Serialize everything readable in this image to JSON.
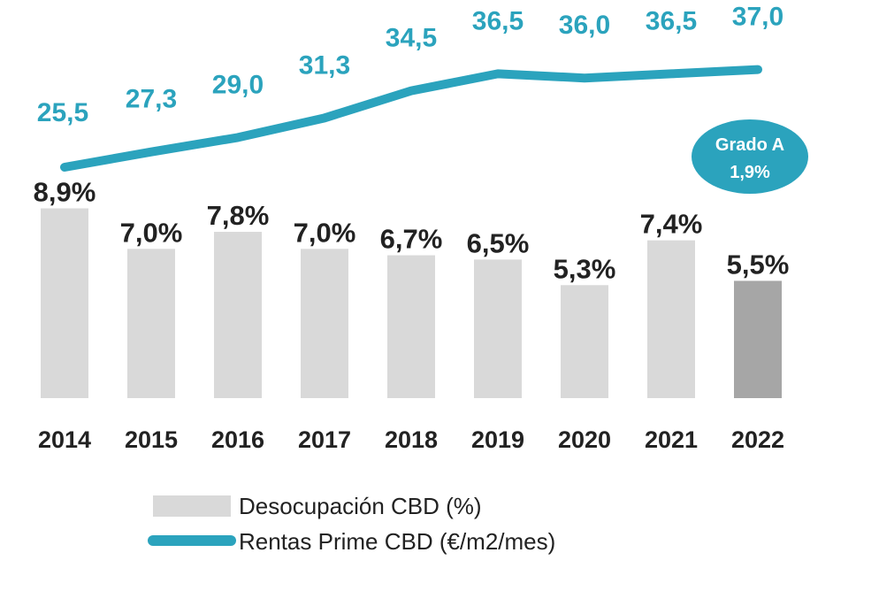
{
  "chart_data": {
    "type": "bar",
    "categories": [
      "2014",
      "2015",
      "2016",
      "2017",
      "2018",
      "2019",
      "2020",
      "2021",
      "2022"
    ],
    "series": [
      {
        "name": "Desocupación CBD (%)",
        "type": "bar",
        "values": [
          8.9,
          7.0,
          7.8,
          7.0,
          6.7,
          6.5,
          5.3,
          7.4,
          5.5
        ],
        "labels": [
          "8,9%",
          "7,0%",
          "7,8%",
          "7,0%",
          "6,7%",
          "6,5%",
          "5,3%",
          "7,4%",
          "5,5%"
        ]
      },
      {
        "name": "Rentas Prime CBD (€/m2/mes)",
        "type": "line",
        "values": [
          25.5,
          27.3,
          29.0,
          31.3,
          34.5,
          36.5,
          36.0,
          36.5,
          37.0
        ],
        "labels": [
          "25,5",
          "27,3",
          "29,0",
          "31,3",
          "34,5",
          "36,5",
          "36,0",
          "36,5",
          "37,0"
        ]
      }
    ],
    "annotation": {
      "line1": "Grado A",
      "line2": "1,9%"
    },
    "legend_position": "bottom",
    "grid": false
  },
  "colors": {
    "bar": "#d9d9d9",
    "bar_highlight": "#a6a6a6",
    "line": "#2ba3bd",
    "text": "#222222",
    "badge": "#2ba3bd"
  }
}
